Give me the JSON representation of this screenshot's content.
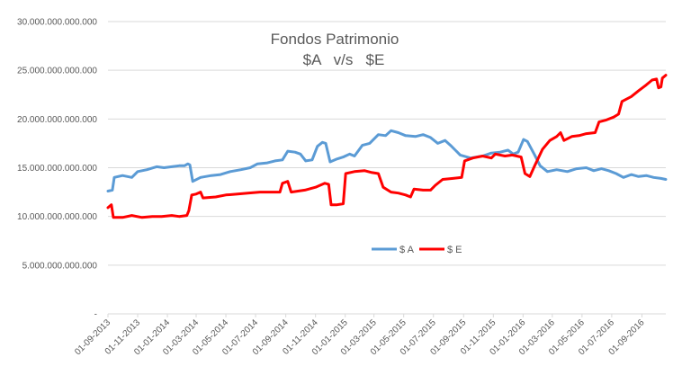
{
  "chart_data": {
    "type": "line",
    "title": "Fondos Patrimonio",
    "subtitle": "$A   v/s   $E",
    "xlabel": "",
    "ylabel": "",
    "ylim": [
      0,
      30000000000000
    ],
    "yticks": [
      0,
      5000000000000,
      10000000000000,
      15000000000000,
      20000000000000,
      25000000000000,
      30000000000000
    ],
    "ytick_labels": [
      "-",
      "5.000.000.000.000",
      "10.000.000.000.000",
      "15.000.000.000.000",
      "20.000.000.000.000",
      "25.000.000.000.000",
      "30.000.000.000.000"
    ],
    "x_range": [
      "2013-09-01",
      "2016-10-20"
    ],
    "x_tick_labels": [
      "01-09-2013",
      "01-11-2013",
      "01-01-2014",
      "01-03-2014",
      "01-05-2014",
      "01-07-2014",
      "01-09-2014",
      "01-11-2014",
      "01-01-2015",
      "01-03-2015",
      "01-05-2015",
      "01-07-2015",
      "01-09-2015",
      "01-11-2015",
      "01-01-2016",
      "01-03-2016",
      "01-05-2016",
      "01-07-2016",
      "01-09-2016"
    ],
    "grid": true,
    "legend_position": "bottom-center",
    "series": [
      {
        "name": "$ A",
        "color": "#5b9bd5",
        "points": [
          [
            "2013-09-01",
            12600000000000.0
          ],
          [
            "2013-09-10",
            12700000000000.0
          ],
          [
            "2013-09-14",
            14000000000000.0
          ],
          [
            "2013-10-01",
            14200000000000.0
          ],
          [
            "2013-10-20",
            14000000000000.0
          ],
          [
            "2013-11-01",
            14600000000000.0
          ],
          [
            "2013-11-20",
            14800000000000.0
          ],
          [
            "2013-12-10",
            15100000000000.0
          ],
          [
            "2013-12-25",
            15000000000000.0
          ],
          [
            "2014-01-10",
            15100000000000.0
          ],
          [
            "2014-01-25",
            15200000000000.0
          ],
          [
            "2014-02-05",
            15200000000000.0
          ],
          [
            "2014-02-12",
            15400000000000.0
          ],
          [
            "2014-02-16",
            15300000000000.0
          ],
          [
            "2014-02-22",
            13600000000000.0
          ],
          [
            "2014-03-10",
            14000000000000.0
          ],
          [
            "2014-04-01",
            14200000000000.0
          ],
          [
            "2014-04-20",
            14300000000000.0
          ],
          [
            "2014-05-10",
            14600000000000.0
          ],
          [
            "2014-06-01",
            14800000000000.0
          ],
          [
            "2014-06-20",
            15000000000000.0
          ],
          [
            "2014-07-05",
            15400000000000.0
          ],
          [
            "2014-07-25",
            15500000000000.0
          ],
          [
            "2014-08-10",
            15700000000000.0
          ],
          [
            "2014-08-25",
            15800000000000.0
          ],
          [
            "2014-09-05",
            16700000000000.0
          ],
          [
            "2014-09-20",
            16600000000000.0
          ],
          [
            "2014-10-01",
            16400000000000.0
          ],
          [
            "2014-10-12",
            15700000000000.0
          ],
          [
            "2014-10-25",
            15800000000000.0
          ],
          [
            "2014-11-05",
            17200000000000.0
          ],
          [
            "2014-11-15",
            17600000000000.0
          ],
          [
            "2014-11-22",
            17500000000000.0
          ],
          [
            "2014-12-01",
            15600000000000.0
          ],
          [
            "2014-12-15",
            15900000000000.0
          ],
          [
            "2014-12-28",
            16100000000000.0
          ],
          [
            "2015-01-10",
            16400000000000.0
          ],
          [
            "2015-01-20",
            16200000000000.0
          ],
          [
            "2015-02-05",
            17300000000000.0
          ],
          [
            "2015-02-20",
            17500000000000.0
          ],
          [
            "2015-03-10",
            18400000000000.0
          ],
          [
            "2015-03-25",
            18300000000000.0
          ],
          [
            "2015-04-05",
            18800000000000.0
          ],
          [
            "2015-04-20",
            18600000000000.0
          ],
          [
            "2015-05-05",
            18300000000000.0
          ],
          [
            "2015-05-25",
            18200000000000.0
          ],
          [
            "2015-06-10",
            18400000000000.0
          ],
          [
            "2015-06-25",
            18100000000000.0
          ],
          [
            "2015-07-10",
            17500000000000.0
          ],
          [
            "2015-07-25",
            17800000000000.0
          ],
          [
            "2015-08-05",
            17300000000000.0
          ],
          [
            "2015-08-15",
            16800000000000.0
          ],
          [
            "2015-08-25",
            16300000000000.0
          ],
          [
            "2015-09-15",
            16000000000000.0
          ],
          [
            "2015-10-10",
            16200000000000.0
          ],
          [
            "2015-10-28",
            16500000000000.0
          ],
          [
            "2015-11-15",
            16600000000000.0
          ],
          [
            "2015-12-01",
            16800000000000.0
          ],
          [
            "2015-12-12",
            16400000000000.0
          ],
          [
            "2015-12-22",
            16600000000000.0
          ],
          [
            "2016-01-02",
            17900000000000.0
          ],
          [
            "2016-01-10",
            17700000000000.0
          ],
          [
            "2016-01-25",
            16300000000000.0
          ],
          [
            "2016-02-05",
            15200000000000.0
          ],
          [
            "2016-02-20",
            14600000000000.0
          ],
          [
            "2016-03-10",
            14800000000000.0
          ],
          [
            "2016-04-01",
            14600000000000.0
          ],
          [
            "2016-04-20",
            14900000000000.0
          ],
          [
            "2016-05-10",
            15000000000000.0
          ],
          [
            "2016-05-25",
            14700000000000.0
          ],
          [
            "2016-06-10",
            14900000000000.0
          ],
          [
            "2016-06-25",
            14700000000000.0
          ],
          [
            "2016-07-10",
            14400000000000.0
          ],
          [
            "2016-07-25",
            14000000000000.0
          ],
          [
            "2016-08-10",
            14300000000000.0
          ],
          [
            "2016-08-25",
            14100000000000.0
          ],
          [
            "2016-09-10",
            14200000000000.0
          ],
          [
            "2016-09-25",
            14000000000000.0
          ],
          [
            "2016-10-10",
            13900000000000.0
          ],
          [
            "2016-10-20",
            13800000000000.0
          ]
        ]
      },
      {
        "name": "$ E",
        "color": "#ff0000",
        "points": [
          [
            "2013-09-01",
            10900000000000.0
          ],
          [
            "2013-09-08",
            11200000000000.0
          ],
          [
            "2013-09-12",
            9900000000000.0
          ],
          [
            "2013-10-01",
            9900000000000.0
          ],
          [
            "2013-10-20",
            10100000000000.0
          ],
          [
            "2013-11-10",
            9900000000000.0
          ],
          [
            "2013-12-01",
            10000000000000.0
          ],
          [
            "2013-12-20",
            10000000000000.0
          ],
          [
            "2014-01-10",
            10100000000000.0
          ],
          [
            "2014-01-25",
            10000000000000.0
          ],
          [
            "2014-02-10",
            10100000000000.0
          ],
          [
            "2014-02-14",
            10600000000000.0
          ],
          [
            "2014-02-20",
            12200000000000.0
          ],
          [
            "2014-03-01",
            12300000000000.0
          ],
          [
            "2014-03-10",
            12500000000000.0
          ],
          [
            "2014-03-15",
            11900000000000.0
          ],
          [
            "2014-04-10",
            12000000000000.0
          ],
          [
            "2014-05-01",
            12200000000000.0
          ],
          [
            "2014-05-25",
            12300000000000.0
          ],
          [
            "2014-06-15",
            12400000000000.0
          ],
          [
            "2014-07-10",
            12500000000000.0
          ],
          [
            "2014-08-01",
            12500000000000.0
          ],
          [
            "2014-08-20",
            12500000000000.0
          ],
          [
            "2014-08-25",
            13400000000000.0
          ],
          [
            "2014-09-05",
            13600000000000.0
          ],
          [
            "2014-09-12",
            12500000000000.0
          ],
          [
            "2014-10-10",
            12700000000000.0
          ],
          [
            "2014-11-01",
            13000000000000.0
          ],
          [
            "2014-11-20",
            13400000000000.0
          ],
          [
            "2014-11-28",
            13300000000000.0
          ],
          [
            "2014-12-03",
            11200000000000.0
          ],
          [
            "2014-12-15",
            11200000000000.0
          ],
          [
            "2014-12-28",
            11300000000000.0
          ],
          [
            "2015-01-02",
            14400000000000.0
          ],
          [
            "2015-01-20",
            14600000000000.0
          ],
          [
            "2015-02-10",
            14700000000000.0
          ],
          [
            "2015-02-25",
            14500000000000.0
          ],
          [
            "2015-03-10",
            14400000000000.0
          ],
          [
            "2015-03-20",
            13000000000000.0
          ],
          [
            "2015-04-05",
            12500000000000.0
          ],
          [
            "2015-04-20",
            12400000000000.0
          ],
          [
            "2015-05-05",
            12200000000000.0
          ],
          [
            "2015-05-15",
            12000000000000.0
          ],
          [
            "2015-05-22",
            12800000000000.0
          ],
          [
            "2015-06-10",
            12700000000000.0
          ],
          [
            "2015-06-25",
            12700000000000.0
          ],
          [
            "2015-07-05",
            13200000000000.0
          ],
          [
            "2015-07-20",
            13800000000000.0
          ],
          [
            "2015-08-10",
            13900000000000.0
          ],
          [
            "2015-08-28",
            14000000000000.0
          ],
          [
            "2015-09-03",
            15700000000000.0
          ],
          [
            "2015-09-20",
            16000000000000.0
          ],
          [
            "2015-10-10",
            16200000000000.0
          ],
          [
            "2015-10-28",
            16000000000000.0
          ],
          [
            "2015-11-05",
            16400000000000.0
          ],
          [
            "2015-11-25",
            16200000000000.0
          ],
          [
            "2015-12-10",
            16300000000000.0
          ],
          [
            "2015-12-28",
            16100000000000.0
          ],
          [
            "2016-01-05",
            14400000000000.0
          ],
          [
            "2016-01-15",
            14100000000000.0
          ],
          [
            "2016-01-25",
            15200000000000.0
          ],
          [
            "2016-02-10",
            16900000000000.0
          ],
          [
            "2016-02-25",
            17800000000000.0
          ],
          [
            "2016-03-10",
            18200000000000.0
          ],
          [
            "2016-03-18",
            18600000000000.0
          ],
          [
            "2016-03-25",
            17800000000000.0
          ],
          [
            "2016-04-10",
            18200000000000.0
          ],
          [
            "2016-04-25",
            18300000000000.0
          ],
          [
            "2016-05-10",
            18500000000000.0
          ],
          [
            "2016-05-28",
            18600000000000.0
          ],
          [
            "2016-06-05",
            19700000000000.0
          ],
          [
            "2016-06-20",
            19900000000000.0
          ],
          [
            "2016-07-05",
            20200000000000.0
          ],
          [
            "2016-07-15",
            20500000000000.0
          ],
          [
            "2016-07-22",
            21800000000000.0
          ],
          [
            "2016-08-10",
            22300000000000.0
          ],
          [
            "2016-08-25",
            22900000000000.0
          ],
          [
            "2016-09-10",
            23500000000000.0
          ],
          [
            "2016-09-22",
            24000000000000.0
          ],
          [
            "2016-10-01",
            24100000000000.0
          ],
          [
            "2016-10-05",
            23200000000000.0
          ],
          [
            "2016-10-10",
            23300000000000.0
          ],
          [
            "2016-10-13",
            24200000000000.0
          ],
          [
            "2016-10-20",
            24500000000000.0
          ]
        ]
      }
    ]
  }
}
